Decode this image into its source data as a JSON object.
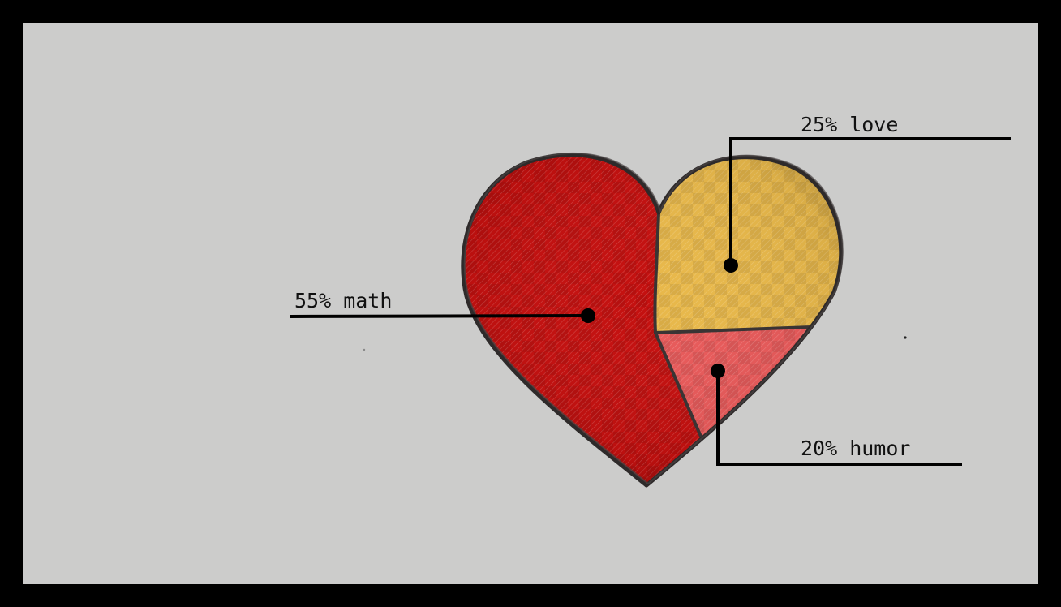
{
  "colors": {
    "background": "#cccccb",
    "frame": "#000000",
    "math": "#c4100f",
    "love": "#e8b84a",
    "humor": "#e85a5a",
    "outline": "#2e2a2a"
  },
  "chart_data": {
    "type": "pie",
    "shape": "heart",
    "slices": [
      {
        "label": "55% math",
        "value": 55,
        "color": "#c4100f"
      },
      {
        "label": "25% love",
        "value": 25,
        "color": "#e8b84a"
      },
      {
        "label": "20% humor",
        "value": 20,
        "color": "#e85a5a"
      }
    ],
    "legend": "none",
    "grid": false
  }
}
